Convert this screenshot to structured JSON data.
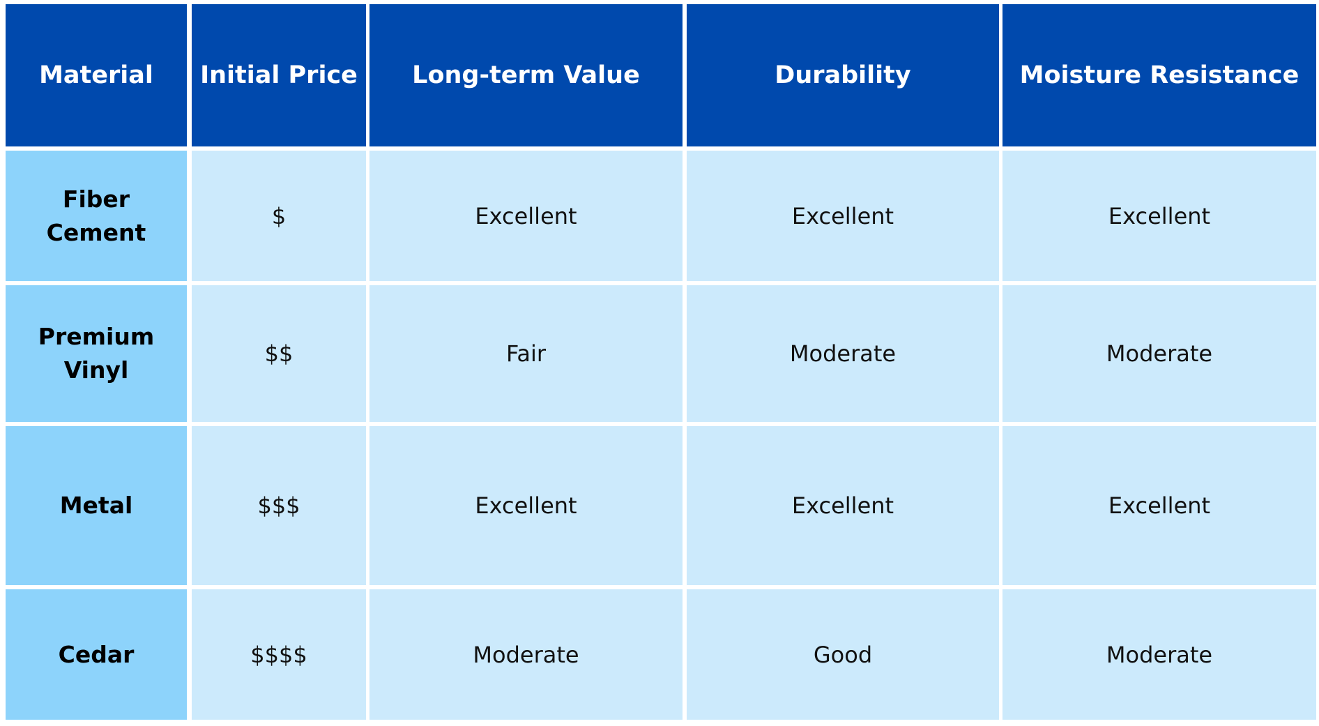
{
  "table": {
    "header": [
      "Material",
      "Initial Price",
      "Long-term Value",
      "Durability",
      "Moisture Resistance"
    ],
    "rows": [
      [
        "Fiber Cement",
        "$",
        "Excellent",
        "Excellent",
        "Excellent"
      ],
      [
        "Premium Vinyl",
        "$$",
        "Fair",
        "Moderate",
        "Moderate"
      ],
      [
        "Metal",
        "$$$",
        "Excellent",
        "Excellent",
        "Excellent"
      ],
      [
        "Cedar",
        "$$$$",
        "Moderate",
        "Good",
        "Moderate"
      ]
    ]
  }
}
